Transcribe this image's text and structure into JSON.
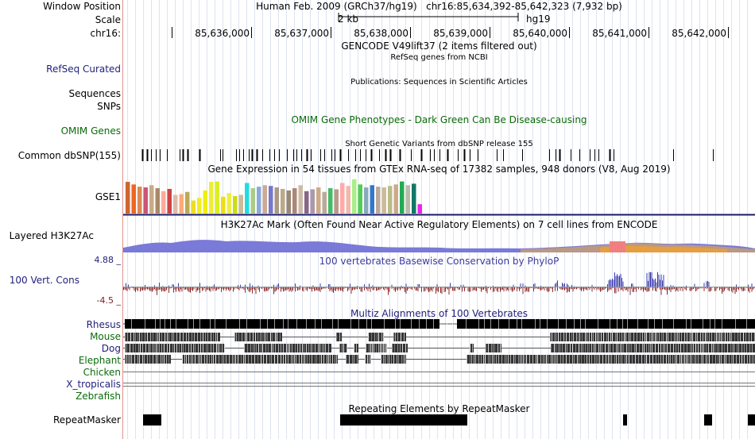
{
  "header": {
    "window_position_label": "Window Position",
    "scale_label": "Scale",
    "chrom_label": "chr16:",
    "assembly": "Human Feb. 2009 (GRCh37/hg19)",
    "position": "chr16:85,634,392-85,642,323 (7,932 bp)",
    "scale_text": "2 kb",
    "scale_db": "hg19",
    "ticks": [
      "85,636,000",
      "85,637,000",
      "85,638,000",
      "85,639,000",
      "85,640,000",
      "85,641,000",
      "85,642,000"
    ]
  },
  "tracks": {
    "gencode_title": "GENCODE V49lift37 (2 items filtered out)",
    "refseq_title": "RefSeq genes from NCBI",
    "refseq_label": "RefSeq Curated",
    "publications_title": "Publications: Sequences in Scientific Articles",
    "sequences_label": "Sequences",
    "snps_label": "SNPs",
    "omim_title": "OMIM Gene Phenotypes - Dark Green Can Be Disease-causing",
    "omim_label": "OMIM Genes",
    "dbsnp_title": "Short Genetic Variants from dbSNP release 155",
    "dbsnp_label": "Common dbSNP(155)",
    "gtex_title": "Gene Expression in 54 tissues from GTEx RNA-seq of 17382 samples, 948 donors (V8, Aug 2019)",
    "gtex_label": "GSE1",
    "h3k27_title": "H3K27Ac Mark (Often Found Near Active Regulatory Elements) on 7 cell lines from ENCODE",
    "h3k27_label": "Layered H3K27Ac",
    "cons_title": "100 vertebrates Basewise Conservation by PhyloP",
    "cons_label": "100 Vert. Cons",
    "cons_max": "4.88 _",
    "cons_min": "-4.5 _",
    "multiz_title": "Multiz Alignments of 100 Vertebrates",
    "species": [
      "Rhesus",
      "Mouse",
      "Dog",
      "Elephant",
      "Chicken",
      "X_tropicalis",
      "Zebrafish"
    ],
    "repeat_title": "Repeating Elements by RepeatMasker",
    "repeat_label": "RepeatMasker"
  },
  "colors": {
    "gtex_bars": [
      "#cc6633",
      "#ee6622",
      "#dd8855",
      "#cc5577",
      "#ccaa88",
      "#aa8866",
      "#ffaa99",
      "#cc4444",
      "#ddbbaa",
      "#ffaa77",
      "#bbaa55",
      "#eedd22",
      "#eeee22",
      "#eeee11",
      "#eeee33",
      "#ddee22",
      "#eedd11",
      "#eeee44",
      "#ccdd11",
      "#ccbb99",
      "#22dddd",
      "#aacc88",
      "#88aadd",
      "#ccaa99",
      "#7777cc",
      "#aa9988",
      "#bbaa88",
      "#998877",
      "#aa8877",
      "#ccbbaa",
      "#886688",
      "#aa99aa",
      "#ccaa88",
      "#bbaa99",
      "#44bb66",
      "#bb9988",
      "#ffaaaa",
      "#eebbaa",
      "#aaee88",
      "#55cc55",
      "#88aabb",
      "#3377cc",
      "#bbaa99",
      "#ccbb99",
      "#bbbb88",
      "#ccaa88",
      "#22aa55",
      "#bbbbaa",
      "#117766",
      "#ee22ee"
    ],
    "gtex_values": [
      0.85,
      0.78,
      0.72,
      0.7,
      0.76,
      0.68,
      0.6,
      0.66,
      0.5,
      0.52,
      0.58,
      0.35,
      0.42,
      0.62,
      0.85,
      0.86,
      0.45,
      0.55,
      0.47,
      0.5,
      0.82,
      0.68,
      0.72,
      0.76,
      0.74,
      0.7,
      0.66,
      0.62,
      0.68,
      0.76,
      0.6,
      0.65,
      0.7,
      0.58,
      0.68,
      0.65,
      0.82,
      0.74,
      0.92,
      0.78,
      0.7,
      0.76,
      0.72,
      0.7,
      0.74,
      0.78,
      0.86,
      0.76,
      0.8,
      0.25
    ]
  }
}
